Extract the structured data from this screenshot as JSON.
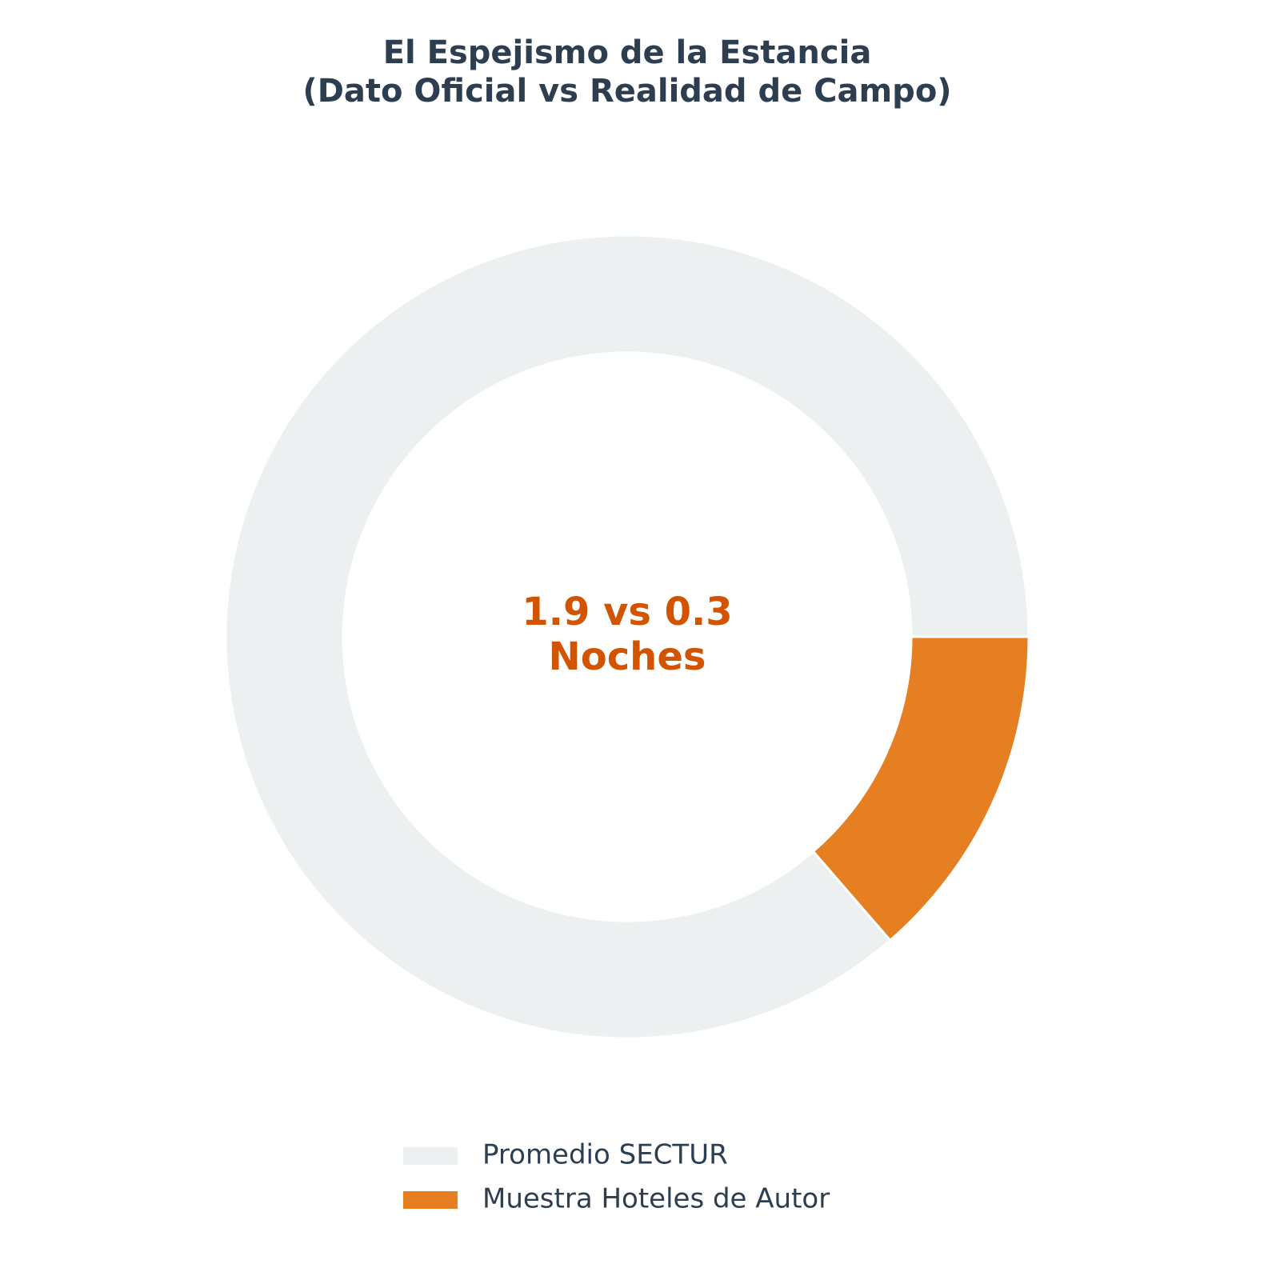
{
  "chart_data": {
    "type": "donut",
    "title": [
      "El Espejismo de la Estancia",
      "(Dato Oficial vs Realidad de Campo)"
    ],
    "annotation": [
      "1.9 vs 0.3",
      "Noches"
    ],
    "categories": [
      "Promedio SECTUR",
      "Muestra Hoteles de Autor"
    ],
    "values": [
      1.9,
      0.3
    ],
    "colors": [
      "#ecf0f1",
      "#e67e22"
    ],
    "legend": "lower center"
  }
}
